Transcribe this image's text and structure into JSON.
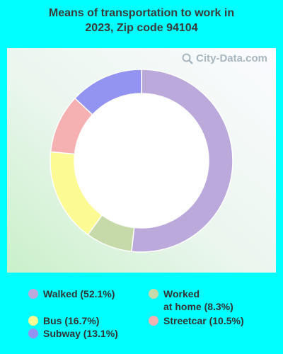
{
  "chart_data": {
    "type": "pie",
    "title": "Means of transportation to work in 2023, Zip code 94104",
    "categories": [
      "Walked",
      "Worked at home",
      "Bus",
      "Streetcar",
      "Subway"
    ],
    "values": [
      52.1,
      8.3,
      16.7,
      10.5,
      13.1
    ],
    "colors": [
      "#bca9dc",
      "#c6d9a9",
      "#fcfa92",
      "#f5b1b2",
      "#9393f2"
    ],
    "donut": true
  },
  "title_lines": [
    "Means of transportation to work in",
    "2023, Zip code 94104"
  ],
  "watermark": "City-Data.com",
  "legend": [
    {
      "label": "Walked (52.1%)",
      "color": "#bca9dc"
    },
    {
      "label": "Worked\nat home (8.3%)",
      "color": "#c6d9a9"
    },
    {
      "label": "Bus (16.7%)",
      "color": "#fcfa92"
    },
    {
      "label": "Streetcar (10.5%)",
      "color": "#f5b1b2"
    },
    {
      "label": "Subway (13.1%)",
      "color": "#9393f2"
    }
  ]
}
